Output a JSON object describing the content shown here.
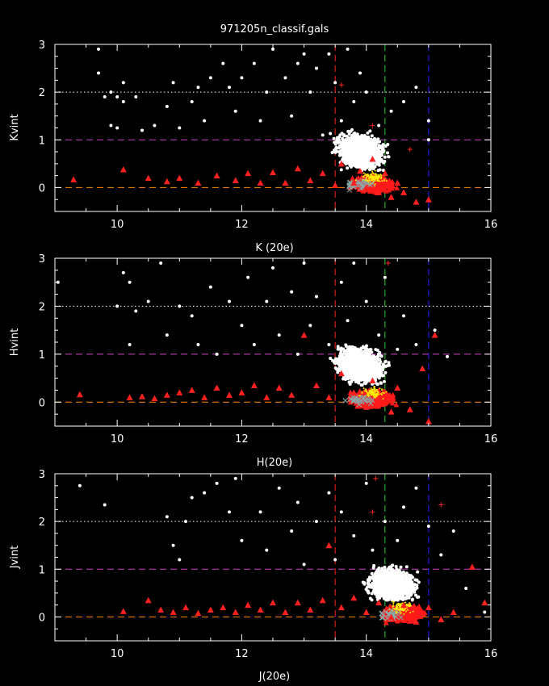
{
  "chart_data": [
    {
      "type": "scatter",
      "title": "971205n_classif.gals",
      "xlabel": "K (20e)",
      "ylabel": "Kvint",
      "xlim": [
        9,
        16
      ],
      "ylim": [
        -0.5,
        3
      ],
      "xticks": [
        10,
        12,
        14,
        16
      ],
      "yticks": [
        0,
        1,
        2,
        3
      ],
      "hlines": [
        {
          "y": 2,
          "color": "#ffffff",
          "style": "dotted"
        },
        {
          "y": 1,
          "color": "#cc44cc",
          "style": "dashed"
        },
        {
          "y": 0,
          "color": "#ff8800",
          "style": "dashed"
        }
      ],
      "vlines": [
        {
          "x": 13.5,
          "color": "#ff2222",
          "style": "dashed"
        },
        {
          "x": 14.3,
          "color": "#33cc33",
          "style": "dashed"
        },
        {
          "x": 15.0,
          "color": "#2222ff",
          "style": "dashed"
        }
      ],
      "series": [
        {
          "marker": "dot",
          "color": "#ffffff",
          "points": [
            [
              9.7,
              2.9
            ],
            [
              9.7,
              2.4
            ],
            [
              9.8,
              1.9
            ],
            [
              9.9,
              2.0
            ],
            [
              10.0,
              1.9
            ],
            [
              10.1,
              2.2
            ],
            [
              10.1,
              1.8
            ],
            [
              10.3,
              1.9
            ],
            [
              9.9,
              1.3
            ],
            [
              10.0,
              1.25
            ],
            [
              10.4,
              1.2
            ],
            [
              10.6,
              1.3
            ],
            [
              10.8,
              1.7
            ],
            [
              10.9,
              2.2
            ],
            [
              11.0,
              1.25
            ],
            [
              11.2,
              1.8
            ],
            [
              11.3,
              2.1
            ],
            [
              11.4,
              1.4
            ],
            [
              11.5,
              2.3
            ],
            [
              11.7,
              2.6
            ],
            [
              11.8,
              2.1
            ],
            [
              11.9,
              1.6
            ],
            [
              12.0,
              2.3
            ],
            [
              12.2,
              2.6
            ],
            [
              12.3,
              1.4
            ],
            [
              12.4,
              2.0
            ],
            [
              12.5,
              2.9
            ],
            [
              12.7,
              2.3
            ],
            [
              12.8,
              1.5
            ],
            [
              12.9,
              2.6
            ],
            [
              13.0,
              2.8
            ],
            [
              13.1,
              2.0
            ],
            [
              13.2,
              2.5
            ],
            [
              13.3,
              1.1
            ],
            [
              13.4,
              2.8
            ],
            [
              13.5,
              2.2
            ],
            [
              13.6,
              1.4
            ],
            [
              13.7,
              2.9
            ],
            [
              13.8,
              1.8
            ],
            [
              13.9,
              2.4
            ],
            [
              14.0,
              2.0
            ],
            [
              14.2,
              1.3
            ],
            [
              14.4,
              1.6
            ],
            [
              14.6,
              1.8
            ],
            [
              14.8,
              2.1
            ],
            [
              15.0,
              1.4
            ],
            [
              15.0,
              1.0
            ]
          ]
        },
        {
          "marker": "triangle",
          "color": "#ff2020",
          "points": [
            [
              9.3,
              0.17
            ],
            [
              10.1,
              0.38
            ],
            [
              10.5,
              0.2
            ],
            [
              10.8,
              0.13
            ],
            [
              11.0,
              0.2
            ],
            [
              11.3,
              0.1
            ],
            [
              11.6,
              0.25
            ],
            [
              11.9,
              0.15
            ],
            [
              12.1,
              0.3
            ],
            [
              12.3,
              0.1
            ],
            [
              12.5,
              0.32
            ],
            [
              12.7,
              0.1
            ],
            [
              12.9,
              0.4
            ],
            [
              13.1,
              0.15
            ],
            [
              13.3,
              0.3
            ],
            [
              13.5,
              0.05
            ],
            [
              13.6,
              0.5
            ],
            [
              13.8,
              0.1
            ],
            [
              13.9,
              0.35
            ],
            [
              14.0,
              0.0
            ],
            [
              14.1,
              0.6
            ],
            [
              14.2,
              -0.1
            ],
            [
              14.3,
              0.3
            ],
            [
              14.4,
              -0.2
            ],
            [
              14.5,
              0.1
            ],
            [
              14.6,
              -0.1
            ],
            [
              14.8,
              -0.3
            ],
            [
              15.0,
              -0.25
            ]
          ]
        },
        {
          "marker": "plus",
          "color": "#ff2020",
          "points": [
            [
              13.6,
              2.15
            ],
            [
              14.1,
              1.3
            ],
            [
              14.7,
              0.8
            ]
          ]
        }
      ]
    },
    {
      "type": "scatter",
      "title": "",
      "xlabel": "H(20e)",
      "ylabel": "Hvint",
      "xlim": [
        9,
        16
      ],
      "ylim": [
        -0.5,
        3
      ],
      "xticks": [
        10,
        12,
        14,
        16
      ],
      "yticks": [
        0,
        1,
        2,
        3
      ],
      "hlines": [
        {
          "y": 2,
          "color": "#ffffff",
          "style": "dotted"
        },
        {
          "y": 1,
          "color": "#cc44cc",
          "style": "dashed"
        },
        {
          "y": 0,
          "color": "#ff8800",
          "style": "dashed"
        }
      ],
      "vlines": [
        {
          "x": 13.5,
          "color": "#ff2222",
          "style": "dashed"
        },
        {
          "x": 14.3,
          "color": "#33cc33",
          "style": "dashed"
        },
        {
          "x": 15.0,
          "color": "#2222ff",
          "style": "dashed"
        }
      ],
      "series": [
        {
          "marker": "dot",
          "color": "#ffffff",
          "points": [
            [
              9.05,
              2.5
            ],
            [
              10.1,
              2.7
            ],
            [
              10.2,
              2.5
            ],
            [
              10.0,
              2.0
            ],
            [
              10.2,
              1.2
            ],
            [
              10.3,
              1.9
            ],
            [
              10.5,
              2.1
            ],
            [
              10.7,
              2.9
            ],
            [
              10.8,
              1.4
            ],
            [
              11.0,
              2.0
            ],
            [
              11.2,
              1.8
            ],
            [
              11.3,
              1.2
            ],
            [
              11.5,
              2.4
            ],
            [
              11.6,
              1.0
            ],
            [
              11.8,
              2.1
            ],
            [
              12.0,
              1.6
            ],
            [
              12.1,
              2.6
            ],
            [
              12.2,
              1.2
            ],
            [
              12.4,
              2.1
            ],
            [
              12.5,
              2.8
            ],
            [
              12.6,
              1.4
            ],
            [
              12.8,
              2.3
            ],
            [
              12.9,
              1.0
            ],
            [
              13.0,
              2.9
            ],
            [
              13.1,
              1.6
            ],
            [
              13.2,
              2.2
            ],
            [
              13.4,
              1.2
            ],
            [
              13.6,
              2.5
            ],
            [
              13.7,
              1.7
            ],
            [
              13.8,
              2.9
            ],
            [
              13.9,
              1.0
            ],
            [
              14.0,
              2.1
            ],
            [
              14.2,
              1.4
            ],
            [
              14.3,
              2.6
            ],
            [
              14.5,
              1.1
            ],
            [
              14.6,
              1.8
            ],
            [
              14.8,
              1.2
            ],
            [
              15.1,
              1.5
            ],
            [
              15.3,
              0.95
            ]
          ]
        },
        {
          "marker": "triangle",
          "color": "#ff2020",
          "points": [
            [
              9.4,
              0.16
            ],
            [
              10.2,
              0.1
            ],
            [
              10.4,
              0.12
            ],
            [
              10.6,
              0.08
            ],
            [
              10.8,
              0.15
            ],
            [
              11.0,
              0.2
            ],
            [
              11.2,
              0.25
            ],
            [
              11.4,
              0.1
            ],
            [
              11.6,
              0.3
            ],
            [
              11.8,
              0.15
            ],
            [
              12.0,
              0.2
            ],
            [
              12.2,
              0.35
            ],
            [
              12.4,
              0.1
            ],
            [
              12.6,
              0.3
            ],
            [
              12.8,
              0.15
            ],
            [
              13.0,
              1.4
            ],
            [
              13.2,
              0.35
            ],
            [
              13.4,
              0.1
            ],
            [
              13.6,
              0.6
            ],
            [
              13.8,
              0.2
            ],
            [
              14.0,
              -0.1
            ],
            [
              14.1,
              0.45
            ],
            [
              14.2,
              0.1
            ],
            [
              14.4,
              -0.2
            ],
            [
              14.5,
              0.3
            ],
            [
              14.7,
              -0.15
            ],
            [
              14.9,
              0.7
            ],
            [
              15.0,
              -0.4
            ],
            [
              15.1,
              1.4
            ]
          ]
        },
        {
          "marker": "plus",
          "color": "#ff2020",
          "points": [
            [
              14.35,
              2.9
            ]
          ]
        }
      ]
    },
    {
      "type": "scatter",
      "title": "",
      "xlabel": "J(20e)",
      "ylabel": "Jvint",
      "xlim": [
        9,
        16
      ],
      "ylim": [
        -0.5,
        3
      ],
      "xticks": [
        10,
        12,
        14,
        16
      ],
      "yticks": [
        0,
        1,
        2,
        3
      ],
      "hlines": [
        {
          "y": 2,
          "color": "#ffffff",
          "style": "dotted"
        },
        {
          "y": 1,
          "color": "#cc44cc",
          "style": "dashed"
        },
        {
          "y": 0,
          "color": "#ff8800",
          "style": "dashed"
        }
      ],
      "vlines": [
        {
          "x": 13.5,
          "color": "#ff2222",
          "style": "dashed"
        },
        {
          "x": 14.3,
          "color": "#33cc33",
          "style": "dashed"
        },
        {
          "x": 15.0,
          "color": "#2222ff",
          "style": "dashed"
        }
      ],
      "series": [
        {
          "marker": "dot",
          "color": "#ffffff",
          "points": [
            [
              9.4,
              2.75
            ],
            [
              9.8,
              2.35
            ],
            [
              10.8,
              2.1
            ],
            [
              10.9,
              1.5
            ],
            [
              11.0,
              1.2
            ],
            [
              11.1,
              2.0
            ],
            [
              11.2,
              2.5
            ],
            [
              11.4,
              2.6
            ],
            [
              11.6,
              2.8
            ],
            [
              11.8,
              2.2
            ],
            [
              11.9,
              2.9
            ],
            [
              12.0,
              1.6
            ],
            [
              12.3,
              2.2
            ],
            [
              12.4,
              1.4
            ],
            [
              12.6,
              2.7
            ],
            [
              12.8,
              1.8
            ],
            [
              12.9,
              2.4
            ],
            [
              13.0,
              1.1
            ],
            [
              13.2,
              2.0
            ],
            [
              13.4,
              2.6
            ],
            [
              13.5,
              1.2
            ],
            [
              13.6,
              2.2
            ],
            [
              13.8,
              1.7
            ],
            [
              14.0,
              2.8
            ],
            [
              14.1,
              1.4
            ],
            [
              14.3,
              2.0
            ],
            [
              14.5,
              1.6
            ],
            [
              14.6,
              2.3
            ],
            [
              14.8,
              2.7
            ],
            [
              15.0,
              1.9
            ],
            [
              15.2,
              1.3
            ],
            [
              15.4,
              1.8
            ],
            [
              15.6,
              0.6
            ],
            [
              15.9,
              0.1
            ]
          ]
        },
        {
          "marker": "triangle",
          "color": "#ff2020",
          "points": [
            [
              10.1,
              0.12
            ],
            [
              10.5,
              0.35
            ],
            [
              10.7,
              0.15
            ],
            [
              10.9,
              0.1
            ],
            [
              11.1,
              0.2
            ],
            [
              11.3,
              0.08
            ],
            [
              11.5,
              0.15
            ],
            [
              11.7,
              0.2
            ],
            [
              11.9,
              0.1
            ],
            [
              12.1,
              0.25
            ],
            [
              12.3,
              0.15
            ],
            [
              12.5,
              0.3
            ],
            [
              12.7,
              0.1
            ],
            [
              12.9,
              0.3
            ],
            [
              13.1,
              0.15
            ],
            [
              13.3,
              0.35
            ],
            [
              13.4,
              1.5
            ],
            [
              13.6,
              0.2
            ],
            [
              13.8,
              0.4
            ],
            [
              14.0,
              0.1
            ],
            [
              14.2,
              0.3
            ],
            [
              14.4,
              0.0
            ],
            [
              14.6,
              0.25
            ],
            [
              14.8,
              -0.1
            ],
            [
              15.0,
              0.2
            ],
            [
              15.2,
              -0.05
            ],
            [
              15.4,
              0.1
            ],
            [
              15.7,
              1.05
            ],
            [
              15.9,
              0.3
            ]
          ]
        },
        {
          "marker": "plus",
          "color": "#ff2020",
          "points": [
            [
              14.15,
              2.9
            ],
            [
              14.1,
              2.2
            ],
            [
              15.2,
              2.35
            ]
          ]
        }
      ]
    }
  ]
}
